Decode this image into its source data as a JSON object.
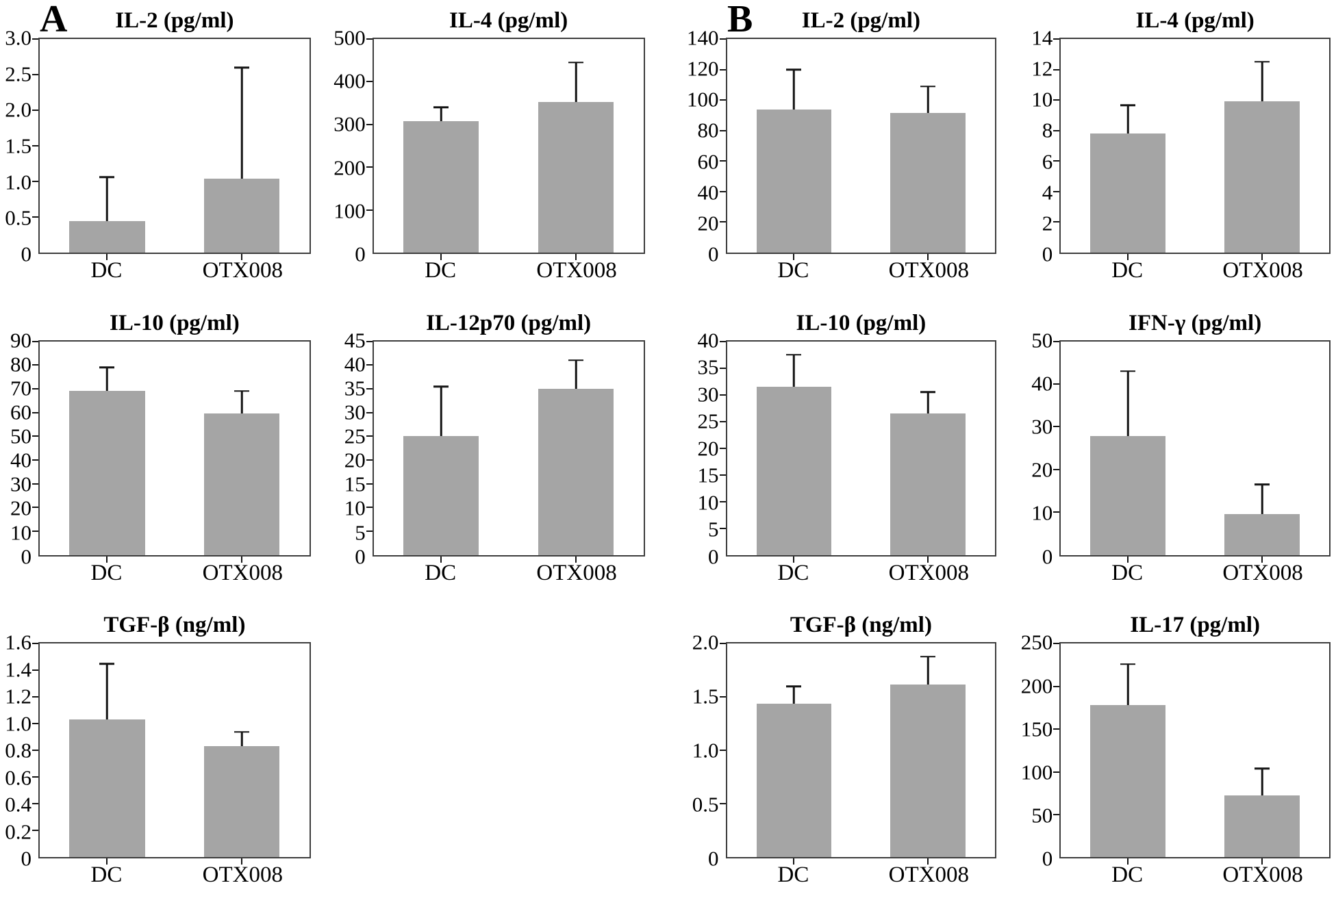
{
  "figure": {
    "bar_color": "#a5a5a5",
    "frame_color": "#3d3d3d",
    "error_color": "#141414",
    "categories": [
      "DC",
      "OTX008"
    ]
  },
  "panels": [
    {
      "label": "A"
    },
    {
      "label": "B"
    }
  ],
  "chart_data": [
    {
      "slot": 0,
      "panel": "A",
      "type": "bar",
      "title": "IL-2 (pg/ml)",
      "categories": [
        "DC",
        "OTX008"
      ],
      "values": [
        0.44,
        1.04
      ],
      "error_plus": [
        0.62,
        1.56
      ],
      "ylim": [
        0,
        3.0
      ],
      "ytick_values": [
        0,
        0.5,
        1,
        1.5,
        2,
        2.5,
        3
      ],
      "ytick_labels": [
        "0",
        "0.5",
        "1.0",
        "1.5",
        "2.0",
        "2.5",
        "3.0"
      ]
    },
    {
      "slot": 1,
      "panel": "A",
      "type": "bar",
      "title": "IL-4 (pg/ml)",
      "categories": [
        "DC",
        "OTX008"
      ],
      "values": [
        308,
        352
      ],
      "error_plus": [
        32,
        93
      ],
      "ylim": [
        0,
        500
      ],
      "ytick_values": [
        0,
        100,
        200,
        300,
        400,
        500
      ],
      "ytick_labels": [
        "0",
        "100",
        "200",
        "300",
        "400",
        "500"
      ]
    },
    {
      "slot": 2,
      "panel": "B",
      "type": "bar",
      "title": "IL-2 (pg/ml)",
      "categories": [
        "DC",
        "OTX008"
      ],
      "values": [
        94,
        91.5
      ],
      "error_plus": [
        26,
        17.5
      ],
      "ylim": [
        0,
        140
      ],
      "ytick_values": [
        0,
        20,
        40,
        60,
        80,
        100,
        120,
        140
      ],
      "ytick_labels": [
        "0",
        "20",
        "40",
        "60",
        "80",
        "100",
        "120",
        "140"
      ]
    },
    {
      "slot": 3,
      "panel": "B",
      "type": "bar",
      "title": "IL-4 (pg/ml)",
      "categories": [
        "DC",
        "OTX008"
      ],
      "values": [
        7.8,
        9.9
      ],
      "error_plus": [
        1.85,
        2.6
      ],
      "ylim": [
        0,
        14
      ],
      "ytick_values": [
        0,
        2,
        4,
        6,
        8,
        10,
        12,
        14
      ],
      "ytick_labels": [
        "0",
        "2",
        "4",
        "6",
        "8",
        "10",
        "12",
        "14"
      ]
    },
    {
      "slot": 4,
      "panel": "A",
      "type": "bar",
      "title": "IL-10 (pg/ml)",
      "categories": [
        "DC",
        "OTX008"
      ],
      "values": [
        69,
        59.5
      ],
      "error_plus": [
        10,
        9.5
      ],
      "ylim": [
        0,
        90
      ],
      "ytick_values": [
        0,
        10,
        20,
        30,
        40,
        50,
        60,
        70,
        80,
        90
      ],
      "ytick_labels": [
        "0",
        "10",
        "20",
        "30",
        "40",
        "50",
        "60",
        "70",
        "80",
        "90"
      ]
    },
    {
      "slot": 5,
      "panel": "A",
      "type": "bar",
      "title": "IL-12p70 (pg/ml)",
      "categories": [
        "DC",
        "OTX008"
      ],
      "values": [
        25,
        35
      ],
      "error_plus": [
        10.5,
        6
      ],
      "ylim": [
        0,
        45
      ],
      "ytick_values": [
        0,
        5,
        10,
        15,
        20,
        25,
        30,
        35,
        40,
        45
      ],
      "ytick_labels": [
        "0",
        "5",
        "10",
        "15",
        "20",
        "25",
        "30",
        "35",
        "40",
        "45"
      ]
    },
    {
      "slot": 6,
      "panel": "B",
      "type": "bar",
      "title": "IL-10 (pg/ml)",
      "categories": [
        "DC",
        "OTX008"
      ],
      "values": [
        31.5,
        26.5
      ],
      "error_plus": [
        6,
        4
      ],
      "ylim": [
        0,
        40
      ],
      "ytick_values": [
        0,
        5,
        10,
        15,
        20,
        25,
        30,
        35,
        40
      ],
      "ytick_labels": [
        "0",
        "5",
        "10",
        "15",
        "20",
        "25",
        "30",
        "35",
        "40"
      ]
    },
    {
      "slot": 7,
      "panel": "B",
      "type": "bar",
      "title": "IFN-γ (pg/ml)",
      "categories": [
        "DC",
        "OTX008"
      ],
      "values": [
        27.8,
        9.5
      ],
      "error_plus": [
        15.2,
        7
      ],
      "ylim": [
        0,
        50
      ],
      "ytick_values": [
        0,
        10,
        20,
        30,
        40,
        50
      ],
      "ytick_labels": [
        "0",
        "10",
        "20",
        "30",
        "40",
        "50"
      ]
    },
    {
      "slot": 8,
      "panel": "A",
      "type": "bar",
      "title": "TGF-β (ng/ml)",
      "categories": [
        "DC",
        "OTX008"
      ],
      "values": [
        1.03,
        0.83
      ],
      "error_plus": [
        0.42,
        0.11
      ],
      "ylim": [
        0,
        1.6
      ],
      "ytick_values": [
        0,
        0.2,
        0.4,
        0.6,
        0.8,
        1.0,
        1.2,
        1.4,
        1.6
      ],
      "ytick_labels": [
        "0",
        "0.2",
        "0.4",
        "0.6",
        "0.8",
        "1.0",
        "1.2",
        "1.4",
        "1.6"
      ]
    },
    {
      "slot": 10,
      "panel": "B",
      "type": "bar",
      "title": "TGF-β (ng/ml)",
      "categories": [
        "DC",
        "OTX008"
      ],
      "values": [
        1.44,
        1.62
      ],
      "error_plus": [
        0.16,
        0.26
      ],
      "ylim": [
        0,
        2.0
      ],
      "ytick_values": [
        0,
        0.5,
        1.0,
        1.5,
        2.0
      ],
      "ytick_labels": [
        "0",
        "0.5",
        "1.0",
        "1.5",
        "2.0"
      ]
    },
    {
      "slot": 11,
      "panel": "B",
      "type": "bar",
      "title": "IL-17 (pg/ml)",
      "categories": [
        "DC",
        "OTX008"
      ],
      "values": [
        178,
        72
      ],
      "error_plus": [
        48,
        32
      ],
      "ylim": [
        0,
        250
      ],
      "ytick_values": [
        0,
        50,
        100,
        150,
        200,
        250
      ],
      "ytick_labels": [
        "0",
        "50",
        "100",
        "150",
        "200",
        "250"
      ]
    }
  ]
}
